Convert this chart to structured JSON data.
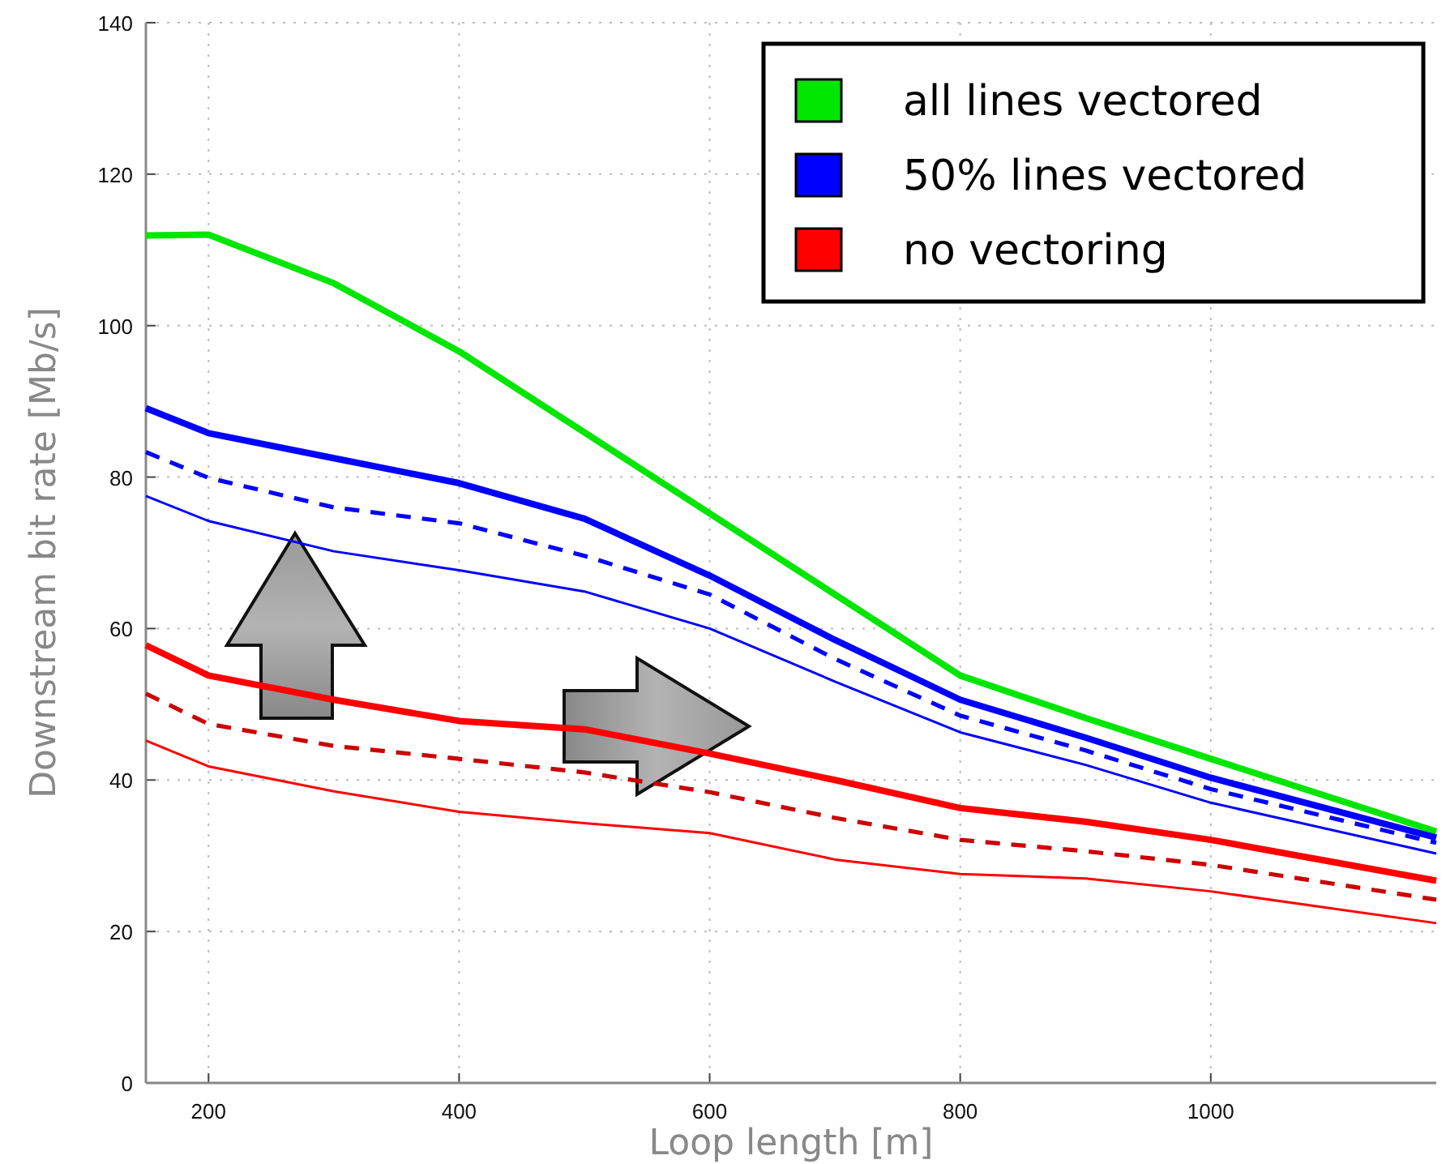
{
  "chart_data": {
    "type": "line",
    "xlabel": "Loop length [m]",
    "ylabel": "Downstream bit rate [Mb/s]",
    "xlim": [
      150,
      1180
    ],
    "ylim": [
      0,
      140
    ],
    "xticks": [
      200,
      400,
      600,
      800,
      1000
    ],
    "yticks": [
      0,
      20,
      40,
      60,
      80,
      100,
      120,
      140
    ],
    "grid": true,
    "legend": "top right",
    "marker": "none",
    "x": [
      150,
      200,
      300,
      400,
      500,
      600,
      700,
      800,
      900,
      1000,
      1180
    ],
    "series": [
      {
        "name": "all lines vectored",
        "color": "#00e600",
        "line_style": "solid",
        "values": [
          111.9,
          112,
          105.6,
          96.6,
          85.9,
          75.2,
          64.5,
          53.8,
          48.2,
          42.8,
          33.2
        ]
      },
      {
        "name": "50% lines vectored",
        "color": "#0000ff",
        "line_style": "solid",
        "values": [
          89.1,
          85.8,
          82.5,
          79.2,
          74.5,
          67,
          58.5,
          50.6,
          45.6,
          40.3,
          32.4
        ]
      },
      {
        "color": "#0000ff",
        "line_style": "dashed",
        "values": [
          83.3,
          79.9,
          76,
          73.9,
          69.6,
          64.5,
          56,
          48.5,
          43.9,
          38.8,
          31.7
        ]
      },
      {
        "color": "#0000ff",
        "line_style": "solid",
        "values": [
          77.5,
          74.2,
          70.2,
          67.7,
          64.9,
          60,
          53,
          46.3,
          42,
          37,
          30.3
        ]
      },
      {
        "name": "no vectoring",
        "color": "#ff0000",
        "line_style": "solid",
        "values": [
          57.8,
          53.8,
          50.6,
          47.8,
          46.7,
          43.5,
          40,
          36.3,
          34.5,
          32.1,
          26.7
        ]
      },
      {
        "color": "#cc0000",
        "line_style": "dashed",
        "values": [
          51.4,
          47.4,
          44.5,
          42.8,
          41,
          38.4,
          35,
          32.1,
          30.6,
          28.8,
          24.2
        ]
      },
      {
        "color": "#ff0000",
        "line_style": "solid",
        "values": [
          45.2,
          41.8,
          38.5,
          35.8,
          34.3,
          33,
          29.5,
          27.6,
          27,
          25.3,
          21.1
        ]
      }
    ]
  }
}
